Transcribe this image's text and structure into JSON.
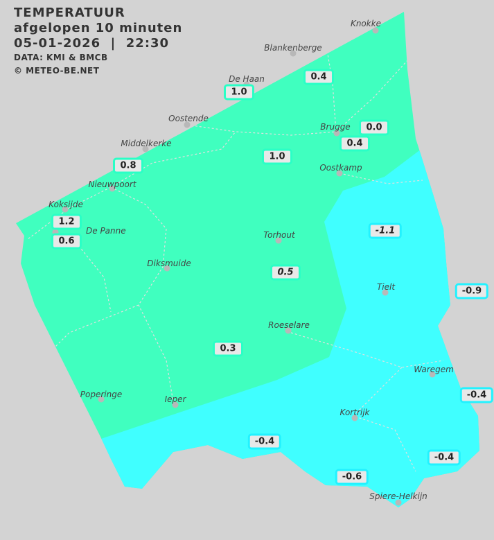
{
  "header": {
    "title": "TEMPERATUUR",
    "subtitle": "afgelopen 10 minuten",
    "datetime": "05-01-2026  |  22:30",
    "source": "DATA: KMI & BMCB",
    "copyright": "© METEO-BE.NET"
  },
  "colors": {
    "background": "#d3d3d3",
    "band_0_to_2": "#40ffbf",
    "band_below_0": "#40ffff"
  },
  "cities": [
    "Knokke",
    "Blankenberge",
    "De Haan",
    "Oostende",
    "Brugge",
    "Middelkerke",
    "Oostkamp",
    "Nieuwpoort",
    "Koksijde",
    "De Panne",
    "Torhout",
    "Diksmuide",
    "Tielt",
    "Roeselare",
    "Waregem",
    "Poperinge",
    "Ieper",
    "Kortrijk",
    "Spiere-Helkijn"
  ],
  "values": [
    "0.4",
    "1.0",
    "0.0",
    "0.4",
    "1.0",
    "0.8",
    "1.2",
    "0.6",
    "-1.1",
    "0.5",
    "-0.9",
    "0.3",
    "-0.4",
    "-0.4",
    "-0.4",
    "-0.6"
  ]
}
